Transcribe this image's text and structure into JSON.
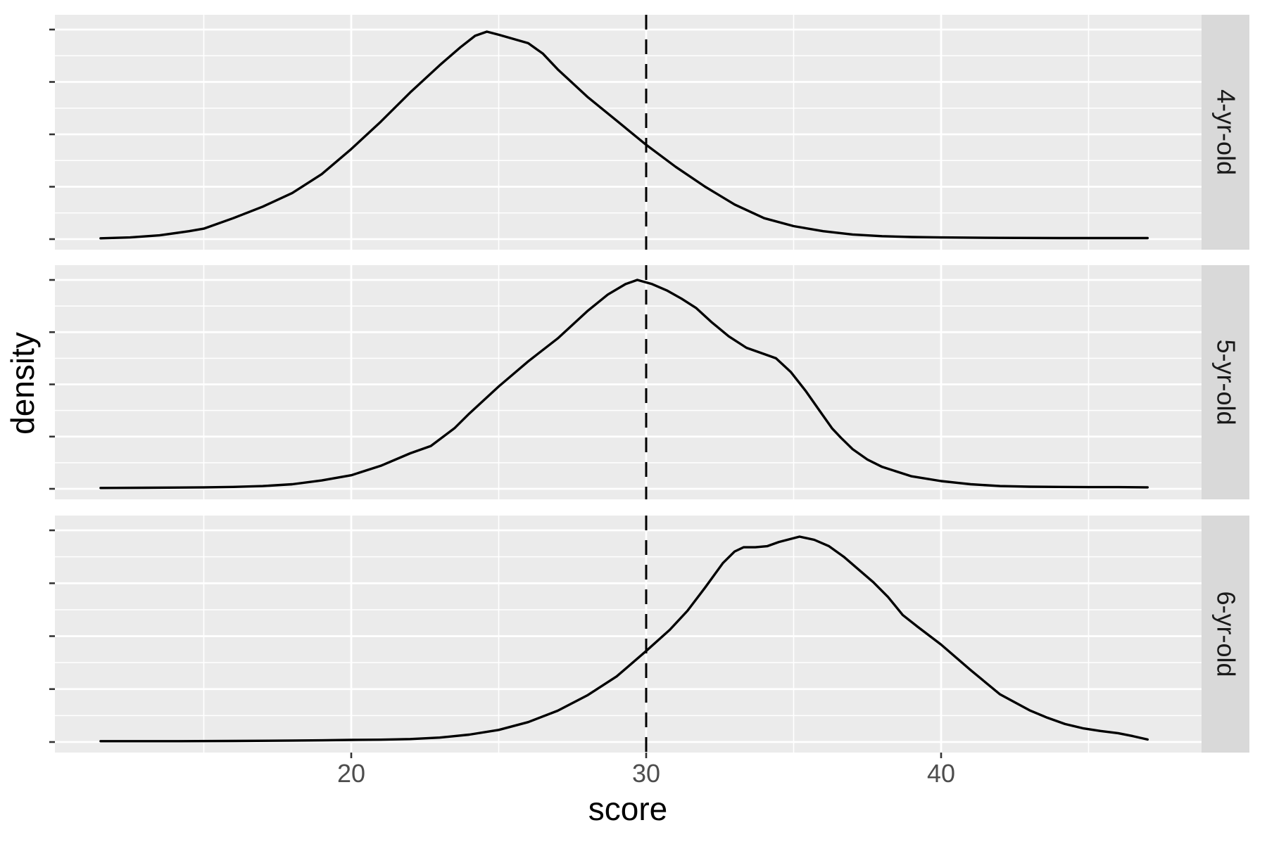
{
  "figure": {
    "background": "#FFFFFF",
    "panel_bg": "#EBEBEB",
    "strip_bg": "#D9D9D9",
    "grid_color": "#FFFFFF",
    "curve_color": "#000000",
    "reference_line_color": "#000000",
    "tick_mark_color": "#333333",
    "axis_text_color": "#4D4D4D",
    "strip_text_color": "#1A1A1A",
    "axis_title_color": "#000000"
  },
  "chart_data": {
    "type": "line",
    "subtype": "faceted-density",
    "title": "",
    "xlabel": "score",
    "ylabel": "density",
    "x_axis": {
      "ticks": [
        20,
        30,
        40
      ],
      "minor_ticks": [
        15,
        25,
        35,
        45
      ],
      "range": [
        10,
        48.8
      ],
      "grid": true
    },
    "y_axis": {
      "ticks_per_facet": 5,
      "tick_labels_shown": false,
      "unit": "relative density (0 = baseline, 1 = top tick of facet)",
      "grid": true
    },
    "reference_line": {
      "x": 30,
      "linetype": "dashed"
    },
    "legend": "none",
    "facets": [
      {
        "label": "4-yr-old",
        "peak_score": 24.6,
        "points": [
          [
            11.5,
            0.004
          ],
          [
            12.5,
            0.008
          ],
          [
            13.5,
            0.018
          ],
          [
            14.5,
            0.038
          ],
          [
            15,
            0.05
          ],
          [
            16,
            0.1
          ],
          [
            17,
            0.155
          ],
          [
            18,
            0.22
          ],
          [
            19,
            0.31
          ],
          [
            20,
            0.43
          ],
          [
            21,
            0.56
          ],
          [
            22,
            0.7
          ],
          [
            23,
            0.83
          ],
          [
            23.7,
            0.915
          ],
          [
            24.2,
            0.97
          ],
          [
            24.6,
            0.99
          ],
          [
            25,
            0.975
          ],
          [
            25.5,
            0.955
          ],
          [
            26,
            0.935
          ],
          [
            26.5,
            0.885
          ],
          [
            27,
            0.81
          ],
          [
            27.5,
            0.745
          ],
          [
            28,
            0.68
          ],
          [
            29,
            0.565
          ],
          [
            30,
            0.45
          ],
          [
            31,
            0.345
          ],
          [
            32,
            0.25
          ],
          [
            33,
            0.165
          ],
          [
            34,
            0.1
          ],
          [
            35,
            0.062
          ],
          [
            36,
            0.038
          ],
          [
            37,
            0.022
          ],
          [
            38,
            0.014
          ],
          [
            39,
            0.01
          ],
          [
            40,
            0.008
          ],
          [
            42,
            0.006
          ],
          [
            44,
            0.005
          ],
          [
            46,
            0.005
          ],
          [
            47,
            0.005
          ]
        ]
      },
      {
        "label": "5-yr-old",
        "peak_score": 29.7,
        "points": [
          [
            11.5,
            0.004
          ],
          [
            13,
            0.005
          ],
          [
            15,
            0.007
          ],
          [
            16,
            0.009
          ],
          [
            17,
            0.013
          ],
          [
            18,
            0.022
          ],
          [
            19,
            0.04
          ],
          [
            20,
            0.065
          ],
          [
            21,
            0.11
          ],
          [
            22,
            0.17
          ],
          [
            22.7,
            0.205
          ],
          [
            23.5,
            0.29
          ],
          [
            24,
            0.36
          ],
          [
            25,
            0.49
          ],
          [
            26,
            0.61
          ],
          [
            27,
            0.72
          ],
          [
            28,
            0.85
          ],
          [
            28.7,
            0.93
          ],
          [
            29.3,
            0.98
          ],
          [
            29.7,
            1.0
          ],
          [
            30.2,
            0.98
          ],
          [
            30.7,
            0.95
          ],
          [
            31.2,
            0.91
          ],
          [
            31.7,
            0.865
          ],
          [
            32.2,
            0.8
          ],
          [
            32.8,
            0.73
          ],
          [
            33.4,
            0.675
          ],
          [
            34,
            0.645
          ],
          [
            34.4,
            0.625
          ],
          [
            34.9,
            0.56
          ],
          [
            35.4,
            0.47
          ],
          [
            35.9,
            0.37
          ],
          [
            36.3,
            0.29
          ],
          [
            36.6,
            0.245
          ],
          [
            37,
            0.19
          ],
          [
            37.5,
            0.14
          ],
          [
            38,
            0.105
          ],
          [
            39,
            0.06
          ],
          [
            40,
            0.037
          ],
          [
            40.6,
            0.028
          ],
          [
            41,
            0.022
          ],
          [
            42,
            0.013
          ],
          [
            43,
            0.01
          ],
          [
            44,
            0.009
          ],
          [
            45,
            0.008
          ],
          [
            46,
            0.008
          ],
          [
            47,
            0.007
          ]
        ]
      },
      {
        "label": "6-yr-old",
        "peak_score": 35.2,
        "points": [
          [
            11.5,
            0.004
          ],
          [
            14,
            0.004
          ],
          [
            16,
            0.005
          ],
          [
            18,
            0.007
          ],
          [
            19,
            0.008
          ],
          [
            20,
            0.01
          ],
          [
            21,
            0.011
          ],
          [
            22,
            0.014
          ],
          [
            23,
            0.021
          ],
          [
            24,
            0.035
          ],
          [
            25,
            0.057
          ],
          [
            26,
            0.094
          ],
          [
            27,
            0.148
          ],
          [
            28,
            0.22
          ],
          [
            29,
            0.31
          ],
          [
            30,
            0.43
          ],
          [
            30.8,
            0.53
          ],
          [
            31.4,
            0.62
          ],
          [
            32,
            0.73
          ],
          [
            32.6,
            0.845
          ],
          [
            33,
            0.9
          ],
          [
            33.3,
            0.92
          ],
          [
            33.7,
            0.92
          ],
          [
            34.1,
            0.925
          ],
          [
            34.5,
            0.945
          ],
          [
            35.2,
            0.97
          ],
          [
            35.7,
            0.955
          ],
          [
            36.2,
            0.925
          ],
          [
            36.7,
            0.875
          ],
          [
            37.2,
            0.815
          ],
          [
            37.7,
            0.755
          ],
          [
            38.2,
            0.685
          ],
          [
            38.7,
            0.6
          ],
          [
            39.2,
            0.545
          ],
          [
            40,
            0.46
          ],
          [
            41,
            0.34
          ],
          [
            42,
            0.225
          ],
          [
            43,
            0.15
          ],
          [
            43.6,
            0.115
          ],
          [
            44.2,
            0.085
          ],
          [
            44.8,
            0.065
          ],
          [
            45.4,
            0.052
          ],
          [
            46,
            0.042
          ],
          [
            46.5,
            0.028
          ],
          [
            47,
            0.012
          ]
        ]
      }
    ]
  }
}
